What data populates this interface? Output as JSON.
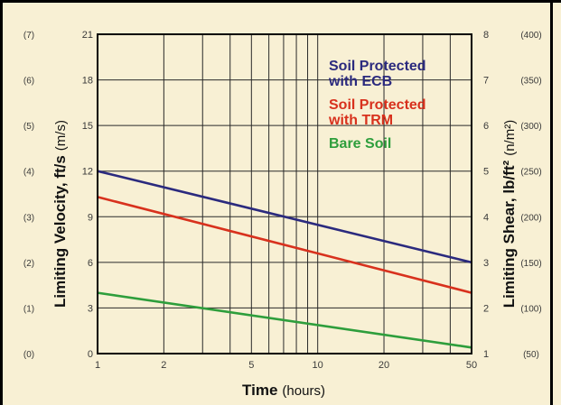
{
  "chart_data": {
    "type": "line",
    "x_scale": "log",
    "grid": true,
    "legend_position": "top-right",
    "xlabel": "Time",
    "xlabel_unit": "(hours)",
    "ylabel": "Limiting Velocity, ft/s",
    "ylabel_unit": "(m/s)",
    "ylabel_right": "Limiting Shear, lb/ft²",
    "ylabel_right_unit": "(n/m²)",
    "xlim": [
      1,
      50
    ],
    "ylim": [
      0,
      21
    ],
    "ylim_right": [
      1,
      8
    ],
    "x_ticks": [
      1,
      2,
      5,
      10,
      20,
      50
    ],
    "x_tick_labels": [
      "1",
      "2",
      "5",
      "10",
      "20",
      "50"
    ],
    "x_gridlines": [
      1,
      2,
      3,
      4,
      5,
      6,
      7,
      8,
      9,
      10,
      20,
      30,
      40,
      50
    ],
    "y_ticks": [
      0,
      3,
      6,
      9,
      12,
      15,
      18,
      21
    ],
    "y_tick_labels": [
      "0",
      "3",
      "6",
      "9",
      "12",
      "15",
      "18",
      "21"
    ],
    "y_ticks_metric_labels": [
      "(0)",
      "(1)",
      "(2)",
      "(3)",
      "(4)",
      "(5)",
      "(6)",
      "(7)"
    ],
    "y_right_ticks": [
      1,
      2,
      3,
      4,
      5,
      6,
      7,
      8
    ],
    "y_right_tick_labels": [
      "1",
      "2",
      "3",
      "4",
      "5",
      "6",
      "7",
      "8"
    ],
    "y_right_metric_labels": [
      "(50)",
      "(100)",
      "(150)",
      "(200)",
      "(250)",
      "(300)",
      "(350)",
      "(400)"
    ],
    "series": [
      {
        "name": "Soil Protected with ECB",
        "label_lines": [
          "Soil Protected",
          "with ECB"
        ],
        "color": "#2b2a7e",
        "x": [
          1,
          50
        ],
        "y": [
          12,
          6
        ]
      },
      {
        "name": "Soil Protected with TRM",
        "label_lines": [
          "Soil Protected",
          "with TRM"
        ],
        "color": "#d8311d",
        "x": [
          1,
          50
        ],
        "y": [
          10.3,
          4
        ]
      },
      {
        "name": "Bare Soil",
        "label_lines": [
          "Bare Soil"
        ],
        "color": "#2e9e3c",
        "x": [
          1,
          50
        ],
        "y": [
          4,
          0.4
        ]
      }
    ],
    "colors": {
      "background": "#f8f0d4",
      "grid": "#2a2a2a",
      "frame": "#000000"
    }
  }
}
